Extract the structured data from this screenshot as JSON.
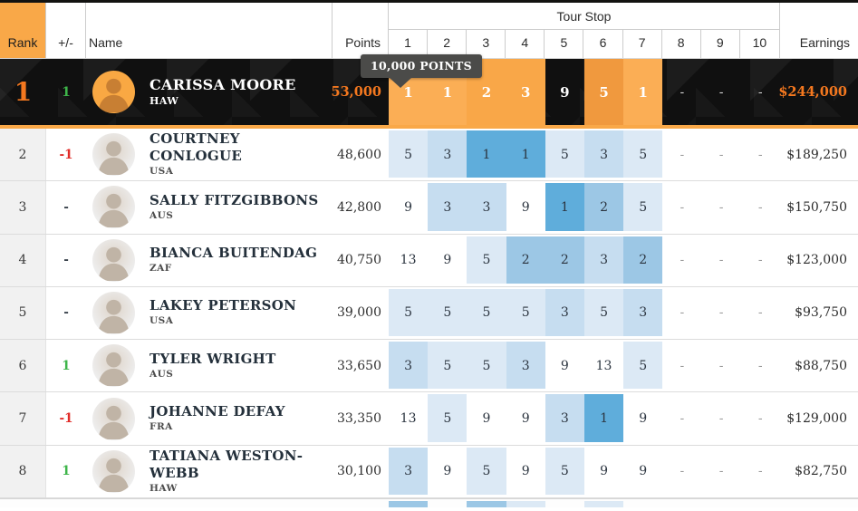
{
  "header": {
    "rank": "Rank",
    "plus_minus": "+/-",
    "name": "Name",
    "points": "Points",
    "tour_stop": "Tour Stop",
    "stops": [
      "1",
      "2",
      "3",
      "4",
      "5",
      "6",
      "7",
      "8",
      "9",
      "10"
    ],
    "earnings": "Earnings"
  },
  "tooltip": {
    "text": "10,000 POINTS"
  },
  "colors": {
    "accent_orange": "#F4781F",
    "header_orange": "#F9A848",
    "featured_cell_orange_light": "#FBAE55",
    "featured_cell_orange": "#F9A748",
    "featured_cell_orange_dark": "#F0993E",
    "featured_row_black": "#101010",
    "gain_green": "#3EB54A",
    "loss_red": "#E12B28",
    "blue_place_1": "#5FADDB",
    "blue_place_2": "#9CC7E5",
    "blue_place_3": "#C6DDF0",
    "blue_place_5": "#DCE9F5",
    "tooltip_bg": "#4B4B49"
  },
  "rows": [
    {
      "rank": "1",
      "change": "1",
      "change_dir": "up",
      "name": "CARISSA MOORE",
      "country": "HAW",
      "points": "53,000",
      "results": [
        "1",
        "1",
        "2",
        "3",
        "9",
        "5",
        "1",
        "-",
        "-",
        "-"
      ],
      "earnings": "$244,000",
      "featured": true
    },
    {
      "rank": "2",
      "change": "-1",
      "change_dir": "down",
      "name": "COURTNEY CONLOGUE",
      "country": "USA",
      "points": "48,600",
      "results": [
        "5",
        "3",
        "1",
        "1",
        "5",
        "3",
        "5",
        "-",
        "-",
        "-"
      ],
      "earnings": "$189,250",
      "featured": false
    },
    {
      "rank": "3",
      "change": "-",
      "change_dir": "none",
      "name": "SALLY FITZGIBBONS",
      "country": "AUS",
      "points": "42,800",
      "results": [
        "9",
        "3",
        "3",
        "9",
        "1",
        "2",
        "5",
        "-",
        "-",
        "-"
      ],
      "earnings": "$150,750",
      "featured": false
    },
    {
      "rank": "4",
      "change": "-",
      "change_dir": "none",
      "name": "BIANCA BUITENDAG",
      "country": "ZAF",
      "points": "40,750",
      "results": [
        "13",
        "9",
        "5",
        "2",
        "2",
        "3",
        "2",
        "-",
        "-",
        "-"
      ],
      "earnings": "$123,000",
      "featured": false
    },
    {
      "rank": "5",
      "change": "-",
      "change_dir": "none",
      "name": "LAKEY PETERSON",
      "country": "USA",
      "points": "39,000",
      "results": [
        "5",
        "5",
        "5",
        "5",
        "3",
        "5",
        "3",
        "-",
        "-",
        "-"
      ],
      "earnings": "$93,750",
      "featured": false
    },
    {
      "rank": "6",
      "change": "1",
      "change_dir": "up",
      "name": "TYLER WRIGHT",
      "country": "AUS",
      "points": "33,650",
      "results": [
        "3",
        "5",
        "5",
        "3",
        "9",
        "13",
        "5",
        "-",
        "-",
        "-"
      ],
      "earnings": "$88,750",
      "featured": false
    },
    {
      "rank": "7",
      "change": "-1",
      "change_dir": "down",
      "name": "JOHANNE DEFAY",
      "country": "FRA",
      "points": "33,350",
      "results": [
        "13",
        "5",
        "9",
        "9",
        "3",
        "1",
        "9",
        "-",
        "-",
        "-"
      ],
      "earnings": "$129,000",
      "featured": false
    },
    {
      "rank": "8",
      "change": "1",
      "change_dir": "up",
      "name": "TATIANA WESTON-WEBB",
      "country": "HAW",
      "points": "30,100",
      "results": [
        "3",
        "9",
        "5",
        "9",
        "5",
        "9",
        "9",
        "-",
        "-",
        "-"
      ],
      "earnings": "$82,750",
      "featured": false
    }
  ],
  "partial_next_row": {
    "cells": [
      {
        "col": 0,
        "tone": "b2"
      },
      {
        "col": 2,
        "tone": "b2"
      },
      {
        "col": 3,
        "tone": "b5"
      },
      {
        "col": 5,
        "tone": "b5"
      }
    ]
  }
}
